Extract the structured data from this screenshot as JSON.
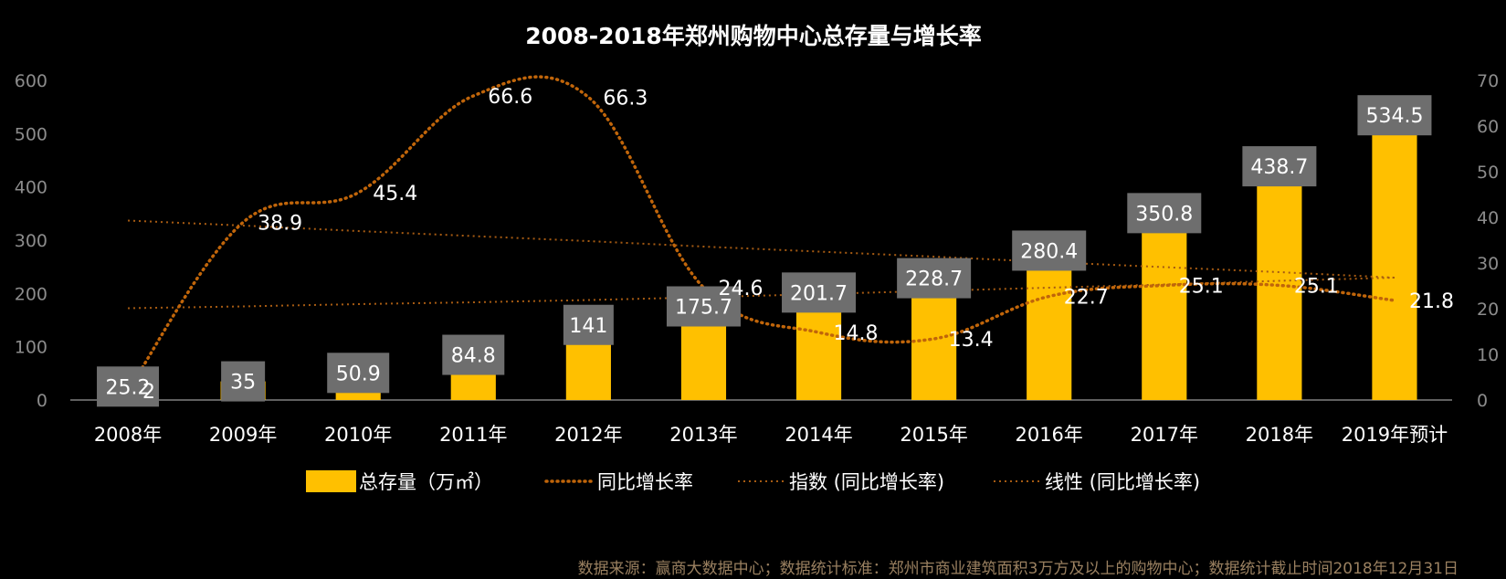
{
  "chart_data": {
    "type": "bar",
    "title": "2008-2018年郑州购物中心总存量与增长率",
    "categories": [
      "2008年",
      "2009年",
      "2010年",
      "2011年",
      "2012年",
      "2013年",
      "2014年",
      "2015年",
      "2016年",
      "2017年",
      "2018年",
      "2019年预计"
    ],
    "series": [
      {
        "name": "总存量（万㎡）",
        "type": "bar",
        "axis": "left",
        "values": [
          25.2,
          35,
          50.9,
          84.8,
          141,
          175.7,
          201.7,
          228.7,
          280.4,
          350.8,
          438.7,
          534.5
        ]
      },
      {
        "name": "同比增长率",
        "type": "line",
        "style": "dotted",
        "axis": "right",
        "values": [
          2,
          38.9,
          45.4,
          66.6,
          66.3,
          24.6,
          14.8,
          13.4,
          22.7,
          25.1,
          25.1,
          21.8
        ]
      },
      {
        "name": "指数 (同比增长率)",
        "type": "trendline",
        "style": "dotted-thin",
        "axis": "right",
        "values": [
          20.1,
          20.5,
          21.0,
          21.4,
          21.9,
          22.5,
          23.2,
          23.9,
          24.6,
          25.3,
          26.1,
          26.8
        ]
      },
      {
        "name": "线性 (同比增长率)",
        "type": "trendline",
        "style": "dotted-thin",
        "axis": "right",
        "values": [
          39.3,
          38.2,
          37.0,
          35.9,
          34.8,
          33.6,
          32.5,
          31.4,
          30.2,
          29.1,
          28.0,
          26.8
        ]
      }
    ],
    "left_axis": {
      "min": 0,
      "max": 600,
      "ticks": [
        0,
        100,
        200,
        300,
        400,
        500,
        600
      ]
    },
    "right_axis": {
      "min": 0,
      "max": 70,
      "ticks": [
        0,
        10,
        20,
        30,
        40,
        50,
        60,
        70
      ]
    },
    "legend_position": "bottom",
    "grid": false,
    "colors": {
      "bar": "#FFC000",
      "rate": "#C0650A",
      "trend": "#A55A12",
      "label_box": "#6E6E6E"
    },
    "source": "数据来源：赢商大数据中心；数据统计标准：郑州市商业建筑面积3万方及以上的购物中心；数据统计截止时间2018年12月31日"
  }
}
